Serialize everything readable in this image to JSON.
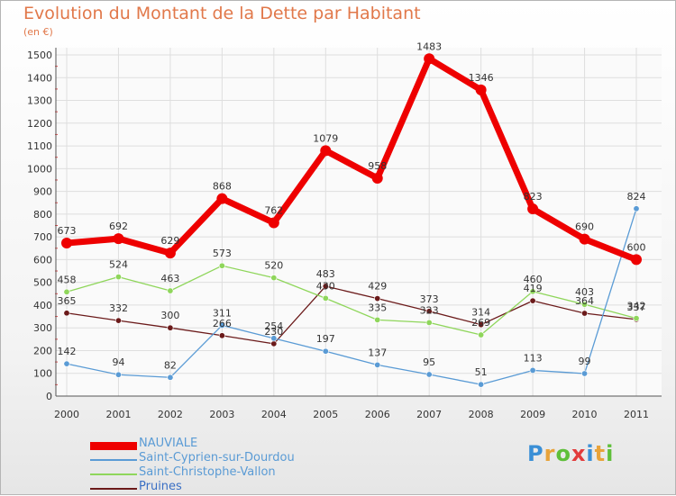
{
  "chart_data": {
    "type": "line",
    "title": "Evolution du Montant de la Dette par Habitant",
    "subtitle": "(en €)",
    "xlabel": "",
    "ylabel": "",
    "x": [
      "2000",
      "2001",
      "2002",
      "2003",
      "2004",
      "2005",
      "2006",
      "2007",
      "2008",
      "2009",
      "2010",
      "2011"
    ],
    "ylim": [
      0,
      1500
    ],
    "yticks": [
      0,
      100,
      200,
      300,
      400,
      500,
      600,
      700,
      800,
      900,
      1000,
      1100,
      1200,
      1300,
      1400,
      1500
    ],
    "grid": true,
    "legend_position": "bottom-left",
    "series": [
      {
        "name": "NAUVIALE",
        "color": "#ee0000",
        "values": [
          673,
          692,
          629,
          868,
          762,
          1079,
          958,
          1483,
          1346,
          823,
          690,
          600
        ]
      },
      {
        "name": "Saint-Cyprien-sur-Dourdou",
        "color": "#5a9bd5",
        "values": [
          142,
          94,
          82,
          311,
          254,
          197,
          137,
          95,
          51,
          113,
          99,
          824
        ]
      },
      {
        "name": "Saint-Christophe-Vallon",
        "color": "#8fd65b",
        "values": [
          458,
          524,
          463,
          573,
          520,
          430,
          335,
          323,
          269,
          460,
          403,
          342
        ]
      },
      {
        "name": "Pruines",
        "color": "#6b1a1a",
        "values": [
          365,
          332,
          300,
          266,
          230,
          483,
          429,
          373,
          314,
          419,
          364,
          337
        ]
      }
    ]
  },
  "logo": {
    "letters": [
      "P",
      "r",
      "o",
      "x",
      "i",
      "t",
      "i"
    ],
    "colors": [
      "#3a8fd6",
      "#e8a33a",
      "#5fbf3a",
      "#e23b3b",
      "#3a8fd6",
      "#e8a33a",
      "#5fbf3a"
    ]
  }
}
